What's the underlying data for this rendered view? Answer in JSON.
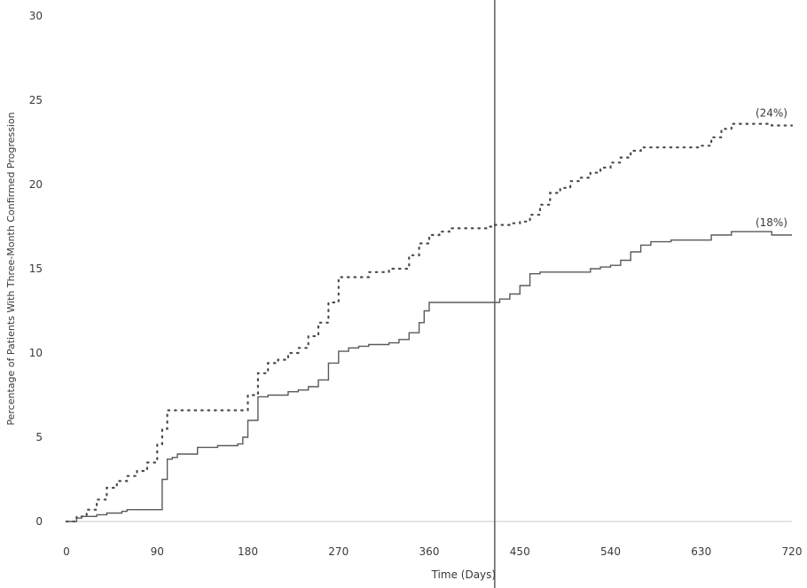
{
  "chart_data": {
    "type": "line",
    "title": "",
    "xlabel": "Time (Days)",
    "ylabel": "Percentage of Patients With Three-Month Confirmed Progression",
    "xlim": [
      0,
      720
    ],
    "ylim": [
      0,
      30
    ],
    "xticks": [
      0,
      90,
      180,
      270,
      360,
      450,
      540,
      630,
      720
    ],
    "yticks": [
      0,
      5,
      10,
      15,
      20,
      25,
      30
    ],
    "grid": false,
    "legend": "none",
    "reference_line_x": 425,
    "series": [
      {
        "style": "dotted",
        "color": "#4a4a4a",
        "end_label": "(24%)",
        "x": [
          0,
          10,
          20,
          30,
          40,
          50,
          60,
          70,
          80,
          90,
          95,
          100,
          110,
          130,
          150,
          170,
          180,
          190,
          200,
          210,
          220,
          230,
          240,
          250,
          260,
          270,
          280,
          290,
          300,
          310,
          320,
          330,
          340,
          350,
          360,
          370,
          380,
          400,
          410,
          420,
          425,
          430,
          440,
          450,
          460,
          470,
          480,
          490,
          500,
          510,
          520,
          530,
          540,
          550,
          560,
          570,
          580,
          600,
          620,
          630,
          640,
          650,
          660,
          680,
          700,
          720
        ],
        "y": [
          0,
          0.3,
          0.7,
          1.3,
          2.0,
          2.4,
          2.7,
          3.0,
          3.5,
          4.6,
          5.5,
          6.6,
          6.6,
          6.6,
          6.6,
          6.6,
          7.5,
          8.8,
          9.4,
          9.6,
          10.0,
          10.3,
          11.0,
          11.8,
          13.0,
          14.5,
          14.5,
          14.5,
          14.8,
          14.8,
          15.0,
          15.0,
          15.8,
          16.5,
          17.0,
          17.2,
          17.4,
          17.4,
          17.4,
          17.5,
          17.6,
          17.6,
          17.7,
          17.8,
          18.2,
          18.8,
          19.5,
          19.8,
          20.2,
          20.4,
          20.7,
          21.0,
          21.3,
          21.6,
          22.0,
          22.2,
          22.2,
          22.2,
          22.2,
          22.3,
          22.8,
          23.3,
          23.6,
          23.6,
          23.5,
          23.5
        ]
      },
      {
        "style": "solid",
        "color": "#5a5a5a",
        "end_label": "(18%)",
        "x": [
          0,
          10,
          15,
          30,
          40,
          55,
          60,
          80,
          90,
          95,
          100,
          105,
          110,
          130,
          150,
          170,
          175,
          180,
          190,
          200,
          210,
          220,
          230,
          240,
          250,
          260,
          270,
          280,
          290,
          300,
          320,
          330,
          340,
          350,
          355,
          360,
          370,
          380,
          400,
          410,
          420,
          430,
          440,
          450,
          460,
          470,
          480,
          500,
          520,
          530,
          540,
          550,
          560,
          570,
          580,
          600,
          620,
          630,
          640,
          660,
          680,
          700,
          720
        ],
        "y": [
          0,
          0.2,
          0.3,
          0.4,
          0.5,
          0.6,
          0.7,
          0.7,
          0.7,
          2.5,
          3.7,
          3.8,
          4.0,
          4.4,
          4.5,
          4.6,
          5.0,
          6.0,
          7.4,
          7.5,
          7.5,
          7.7,
          7.8,
          8.0,
          8.4,
          9.4,
          10.1,
          10.3,
          10.4,
          10.5,
          10.6,
          10.8,
          11.2,
          11.8,
          12.5,
          13.0,
          13.0,
          13.0,
          13.0,
          13.0,
          13.0,
          13.2,
          13.5,
          14.0,
          14.7,
          14.8,
          14.8,
          14.8,
          15.0,
          15.1,
          15.2,
          15.5,
          16.0,
          16.4,
          16.6,
          16.7,
          16.7,
          16.7,
          17.0,
          17.2,
          17.2,
          17.0,
          17.0
        ]
      }
    ]
  }
}
